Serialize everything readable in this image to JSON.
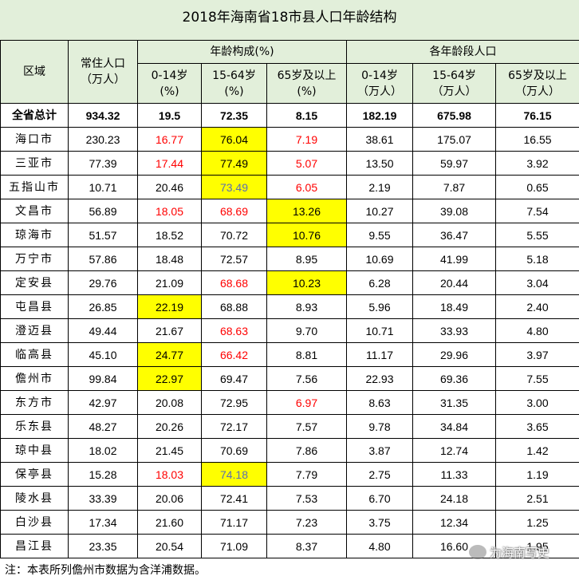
{
  "title": "2018年海南省18市县人口年龄结构",
  "header": {
    "region": "区域",
    "population_line1": "常住人口",
    "population_line2": "（万人）",
    "age_structure": "年龄构成(%)",
    "age_population": "各年龄段人口",
    "sub": [
      {
        "l1": "0-14岁",
        "l2": "(%)"
      },
      {
        "l1": "15-64岁",
        "l2": "(%)"
      },
      {
        "l1": "65岁及以上",
        "l2": "(%)"
      },
      {
        "l1": "0-14岁",
        "l2": "（万人）"
      },
      {
        "l1": "15-64岁",
        "l2": "（万人）"
      },
      {
        "l1": "65岁及以上",
        "l2": "（万人）"
      }
    ]
  },
  "rows": [
    {
      "region": "全省总计",
      "total": true,
      "cells": [
        {
          "v": "934.32"
        },
        {
          "v": "19.5"
        },
        {
          "v": "72.35"
        },
        {
          "v": "8.15"
        },
        {
          "v": "182.19"
        },
        {
          "v": "675.98"
        },
        {
          "v": "76.15"
        }
      ]
    },
    {
      "region": "海口市",
      "cells": [
        {
          "v": "230.23"
        },
        {
          "v": "16.77",
          "c": "red"
        },
        {
          "v": "76.04",
          "bg": "yel"
        },
        {
          "v": "7.19",
          "c": "red"
        },
        {
          "v": "38.61"
        },
        {
          "v": "175.07"
        },
        {
          "v": "16.55"
        }
      ]
    },
    {
      "region": "三亚市",
      "cells": [
        {
          "v": "77.39"
        },
        {
          "v": "17.44",
          "c": "red"
        },
        {
          "v": "77.49",
          "bg": "yel"
        },
        {
          "v": "5.07",
          "c": "red"
        },
        {
          "v": "13.50"
        },
        {
          "v": "59.97"
        },
        {
          "v": "3.92"
        }
      ]
    },
    {
      "region": "五指山市",
      "cells": [
        {
          "v": "10.71"
        },
        {
          "v": "20.46"
        },
        {
          "v": "73.49",
          "c": "blue",
          "bg": "yel"
        },
        {
          "v": "6.05",
          "c": "red"
        },
        {
          "v": "2.19"
        },
        {
          "v": "7.87"
        },
        {
          "v": "0.65"
        }
      ]
    },
    {
      "region": "文昌市",
      "cells": [
        {
          "v": "56.89"
        },
        {
          "v": "18.05",
          "c": "red"
        },
        {
          "v": "68.69",
          "c": "red"
        },
        {
          "v": "13.26",
          "bg": "yel"
        },
        {
          "v": "10.27"
        },
        {
          "v": "39.08"
        },
        {
          "v": "7.54"
        }
      ]
    },
    {
      "region": "琼海市",
      "cells": [
        {
          "v": "51.57"
        },
        {
          "v": "18.52"
        },
        {
          "v": "70.72"
        },
        {
          "v": "10.76",
          "bg": "yel"
        },
        {
          "v": "9.55"
        },
        {
          "v": "36.47"
        },
        {
          "v": "5.55"
        }
      ]
    },
    {
      "region": "万宁市",
      "cells": [
        {
          "v": "57.86"
        },
        {
          "v": "18.48"
        },
        {
          "v": "72.57"
        },
        {
          "v": "8.95"
        },
        {
          "v": "10.69"
        },
        {
          "v": "41.99"
        },
        {
          "v": "5.18"
        }
      ]
    },
    {
      "region": "定安县",
      "cells": [
        {
          "v": "29.76"
        },
        {
          "v": "21.09"
        },
        {
          "v": "68.68",
          "c": "red"
        },
        {
          "v": "10.23",
          "bg": "yel"
        },
        {
          "v": "6.28"
        },
        {
          "v": "20.44"
        },
        {
          "v": "3.04"
        }
      ]
    },
    {
      "region": "屯昌县",
      "cells": [
        {
          "v": "26.85"
        },
        {
          "v": "22.19",
          "bg": "yel"
        },
        {
          "v": "68.88"
        },
        {
          "v": "8.93"
        },
        {
          "v": "5.96"
        },
        {
          "v": "18.49"
        },
        {
          "v": "2.40"
        }
      ]
    },
    {
      "region": "澄迈县",
      "cells": [
        {
          "v": "49.44"
        },
        {
          "v": "21.67"
        },
        {
          "v": "68.63",
          "c": "red"
        },
        {
          "v": "9.70"
        },
        {
          "v": "10.71"
        },
        {
          "v": "33.93"
        },
        {
          "v": "4.80"
        }
      ]
    },
    {
      "region": "临高县",
      "cells": [
        {
          "v": "45.10"
        },
        {
          "v": "24.77",
          "bg": "yel"
        },
        {
          "v": "66.42",
          "c": "red"
        },
        {
          "v": "8.81"
        },
        {
          "v": "11.17"
        },
        {
          "v": "29.96"
        },
        {
          "v": "3.97"
        }
      ]
    },
    {
      "region": "儋州市",
      "cells": [
        {
          "v": "99.84"
        },
        {
          "v": "22.97",
          "bg": "yel"
        },
        {
          "v": "69.47"
        },
        {
          "v": "7.56"
        },
        {
          "v": "22.93"
        },
        {
          "v": "69.36"
        },
        {
          "v": "7.55"
        }
      ]
    },
    {
      "region": "东方市",
      "cells": [
        {
          "v": "42.97"
        },
        {
          "v": "20.08"
        },
        {
          "v": "72.95"
        },
        {
          "v": "6.97",
          "c": "red"
        },
        {
          "v": "8.63"
        },
        {
          "v": "31.35"
        },
        {
          "v": "3.00"
        }
      ]
    },
    {
      "region": "乐东县",
      "cells": [
        {
          "v": "48.27"
        },
        {
          "v": "20.26"
        },
        {
          "v": "72.17"
        },
        {
          "v": "7.57"
        },
        {
          "v": "9.78"
        },
        {
          "v": "34.84"
        },
        {
          "v": "3.65"
        }
      ]
    },
    {
      "region": "琼中县",
      "cells": [
        {
          "v": "18.02"
        },
        {
          "v": "21.45"
        },
        {
          "v": "70.69"
        },
        {
          "v": "7.86"
        },
        {
          "v": "3.87"
        },
        {
          "v": "12.74"
        },
        {
          "v": "1.42"
        }
      ]
    },
    {
      "region": "保亭县",
      "cells": [
        {
          "v": "15.28"
        },
        {
          "v": "18.03",
          "c": "red"
        },
        {
          "v": "74.18",
          "c": "blue",
          "bg": "yel"
        },
        {
          "v": "7.79"
        },
        {
          "v": "2.75"
        },
        {
          "v": "11.33"
        },
        {
          "v": "1.19"
        }
      ]
    },
    {
      "region": "陵水县",
      "cells": [
        {
          "v": "33.39"
        },
        {
          "v": "20.06"
        },
        {
          "v": "72.41"
        },
        {
          "v": "7.53"
        },
        {
          "v": "6.70"
        },
        {
          "v": "24.18"
        },
        {
          "v": "2.51"
        }
      ]
    },
    {
      "region": "白沙县",
      "cells": [
        {
          "v": "17.34"
        },
        {
          "v": "21.60"
        },
        {
          "v": "71.17"
        },
        {
          "v": "7.23"
        },
        {
          "v": "3.75"
        },
        {
          "v": "12.34"
        },
        {
          "v": "1.25"
        }
      ]
    },
    {
      "region": "昌江县",
      "cells": [
        {
          "v": "23.35"
        },
        {
          "v": "20.54"
        },
        {
          "v": "71.09"
        },
        {
          "v": "8.37"
        },
        {
          "v": "4.80"
        },
        {
          "v": "16.60"
        },
        {
          "v": "1.95"
        }
      ]
    }
  ],
  "footer": "注：本表所列儋州市数据为含洋浦数据。",
  "watermark": "为海南写史",
  "colors": {
    "header_bg": "#e2efda",
    "highlight": "#ffff00",
    "red_text": "#ff0000",
    "blue_text": "#5a6fb2"
  }
}
